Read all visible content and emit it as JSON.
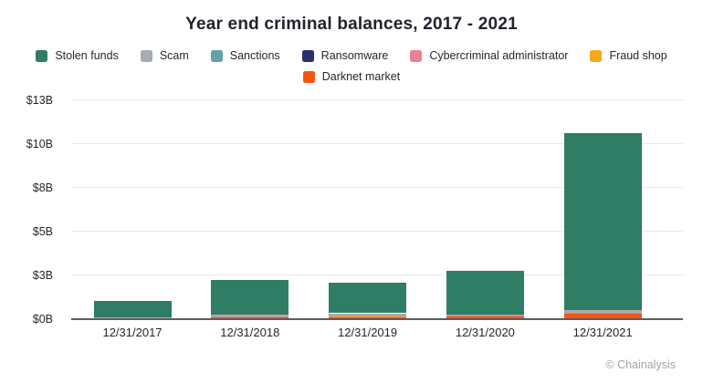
{
  "credit": "© Chainalysis",
  "chart_data": {
    "type": "bar",
    "stacked": true,
    "stack_order": "reverse-of-series",
    "legend_position": "top",
    "grid": "horizontal",
    "title": "Year end criminal balances, 2017 - 2021",
    "unit": "USD billions",
    "categories": [
      "12/31/2017",
      "12/31/2018",
      "12/31/2019",
      "12/31/2020",
      "12/31/2021"
    ],
    "series": [
      {
        "id": "stolen-funds",
        "name": "Stolen funds",
        "color": "#2E7D64",
        "legend_row": 1,
        "values": [
          0.95,
          1.95,
          1.75,
          2.5,
          10.15
        ]
      },
      {
        "id": "scam",
        "name": "Scam",
        "color": "#A7ABB2",
        "legend_row": 1,
        "values": [
          0.02,
          0.1,
          0.12,
          0.06,
          0.12
        ]
      },
      {
        "id": "sanctions",
        "name": "Sanctions",
        "color": "#63A2AA",
        "legend_row": 1,
        "values": [
          0,
          0,
          0,
          0,
          0
        ]
      },
      {
        "id": "ransomware",
        "name": "Ransomware",
        "color": "#27316F",
        "legend_row": 1,
        "values": [
          0,
          0,
          0,
          0,
          0
        ]
      },
      {
        "id": "cybercriminal-administrator",
        "name": "Cybercriminal administrator",
        "color": "#EE8191",
        "legend_row": 1,
        "values": [
          0.06,
          0.02,
          0.02,
          0.02,
          0.04
        ]
      },
      {
        "id": "fraud-shop",
        "name": "Fraud shop",
        "color": "#F8A81B",
        "legend_row": 1,
        "values": [
          0,
          0,
          0.08,
          0,
          0
        ]
      },
      {
        "id": "darknet-market",
        "name": "Darknet market",
        "color": "#F4560F",
        "legend_row": 2,
        "values": [
          0.04,
          0.15,
          0.12,
          0.2,
          0.35
        ]
      }
    ],
    "y_ticks": [
      {
        "value": 0,
        "label": "$0B"
      },
      {
        "value": 2.5,
        "label": "$3B"
      },
      {
        "value": 5,
        "label": "$5B"
      },
      {
        "value": 7.5,
        "label": "$8B"
      },
      {
        "value": 10,
        "label": "$10B"
      },
      {
        "value": 12.5,
        "label": "$13B"
      }
    ],
    "ylim": [
      0,
      13.2
    ],
    "totals_estimate": [
      1.07,
      2.22,
      2.09,
      2.78,
      10.66
    ]
  }
}
